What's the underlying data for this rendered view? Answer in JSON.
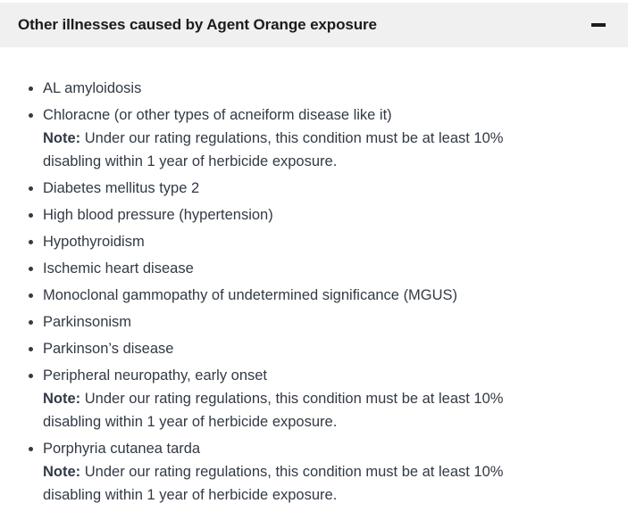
{
  "accordion": {
    "title": "Other illnesses caused by Agent Orange exposure",
    "expanded": true,
    "toggle_icon": "minus-icon",
    "note": {
      "label": "Note:",
      "text": "Under our rating regulations, this condition must be at least 10% disabling within 1 year of herbicide exposure."
    },
    "items": [
      {
        "text": "AL amyloidosis",
        "has_note": false
      },
      {
        "text": "Chloracne (or other types of acneiform disease like it)",
        "has_note": true
      },
      {
        "text": "Diabetes mellitus type 2",
        "has_note": false
      },
      {
        "text": "High blood pressure (hypertension)",
        "has_note": false
      },
      {
        "text": "Hypothyroidism",
        "has_note": false
      },
      {
        "text": "Ischemic heart disease",
        "has_note": false
      },
      {
        "text": "Monoclonal gammopathy of undetermined significance (MGUS)",
        "has_note": false
      },
      {
        "text": "Parkinsonism",
        "has_note": false
      },
      {
        "text": "Parkinson’s disease",
        "has_note": false
      },
      {
        "text": "Peripheral neuropathy, early onset",
        "has_note": true
      },
      {
        "text": "Porphyria cutanea tarda",
        "has_note": true
      }
    ]
  },
  "colors": {
    "header_background": "#f0f0f0",
    "title_text": "#1b1b1b",
    "body_text": "#323a45"
  }
}
